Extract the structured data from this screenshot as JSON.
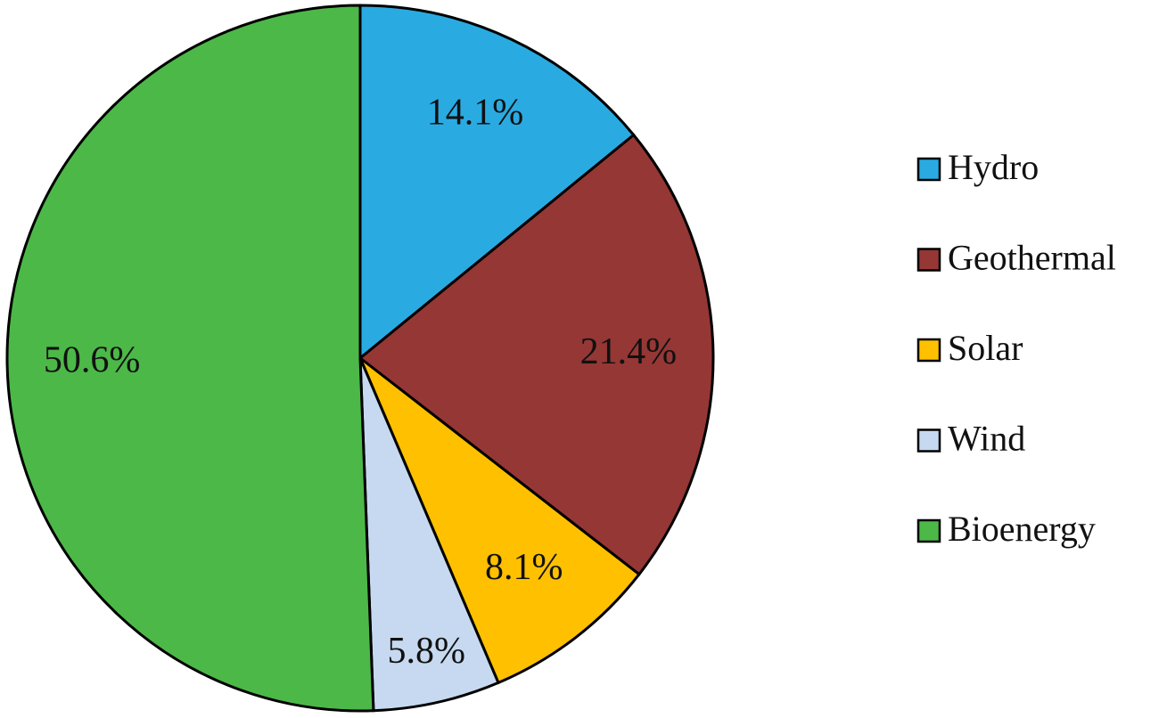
{
  "chart_data": {
    "type": "pie",
    "categories": [
      "Hydro",
      "Geothermal",
      "Solar",
      "Wind",
      "Bioenergy"
    ],
    "values": [
      14.1,
      21.4,
      8.1,
      5.8,
      50.6
    ],
    "value_labels": [
      "14.1%",
      "21.4%",
      "8.1%",
      "5.8%",
      "50.6%"
    ],
    "colors": [
      "#29abe2",
      "#953735",
      "#ffc000",
      "#c6d9f0",
      "#4cb848"
    ],
    "legend": "right"
  }
}
